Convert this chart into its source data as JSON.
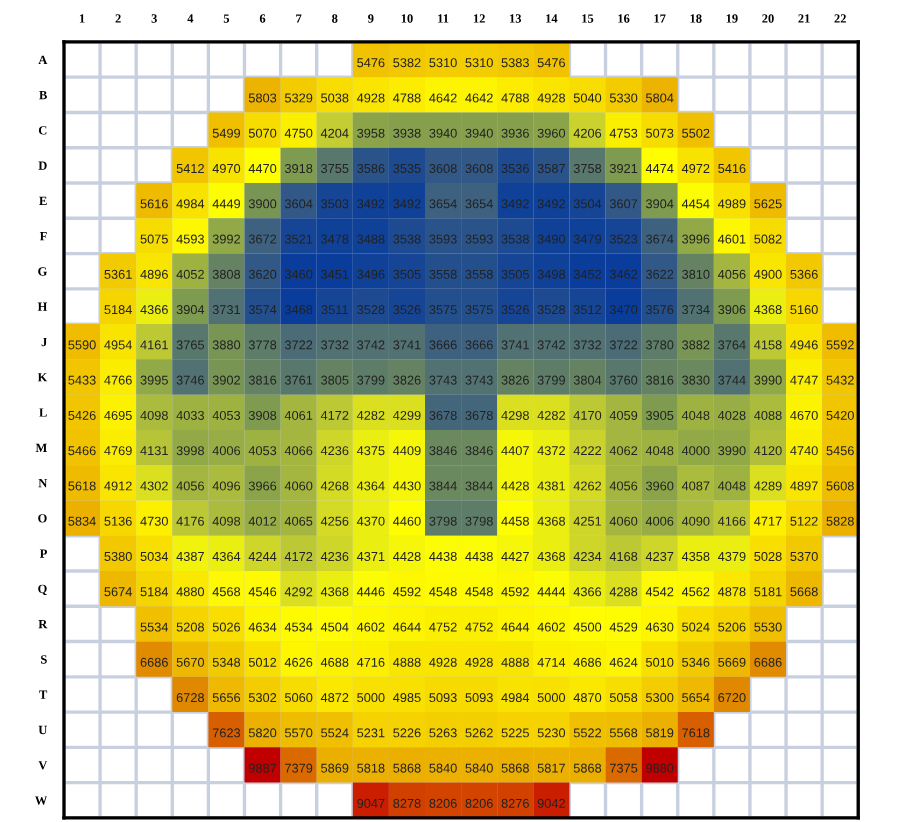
{
  "chart_data": {
    "type": "heatmap",
    "data_labels": true,
    "grid": true,
    "categories": [
      "1",
      "2",
      "3",
      "4",
      "5",
      "6",
      "7",
      "8",
      "9",
      "10",
      "11",
      "12",
      "13",
      "14",
      "15",
      "16",
      "17",
      "18",
      "19",
      "20",
      "21",
      "22"
    ],
    "y_categories": [
      "A",
      "B",
      "C",
      "D",
      "E",
      "F",
      "G",
      "H",
      "J",
      "K",
      "L",
      "M",
      "N",
      "O",
      "P",
      "Q",
      "R",
      "S",
      "T",
      "U",
      "V",
      "W"
    ],
    "cells": [
      [
        null,
        null,
        null,
        null,
        null,
        null,
        null,
        null,
        5476,
        5382,
        5310,
        5310,
        5383,
        5476,
        null,
        null,
        null,
        null,
        null,
        null,
        null,
        null
      ],
      [
        null,
        null,
        null,
        null,
        null,
        5803,
        5329,
        5038,
        4928,
        4788,
        4642,
        4642,
        4788,
        4928,
        5040,
        5330,
        5804,
        null,
        null,
        null,
        null,
        null
      ],
      [
        null,
        null,
        null,
        null,
        5499,
        5070,
        4750,
        4204,
        3958,
        3938,
        3940,
        3940,
        3936,
        3960,
        4206,
        4753,
        5073,
        5502,
        null,
        null,
        null,
        null
      ],
      [
        null,
        null,
        null,
        5412,
        4970,
        4470,
        3918,
        3755,
        3586,
        3535,
        3608,
        3608,
        3536,
        3587,
        3758,
        3921,
        4474,
        4972,
        5416,
        null,
        null,
        null
      ],
      [
        null,
        null,
        5616,
        4984,
        4449,
        3900,
        3604,
        3503,
        3492,
        3492,
        3654,
        3654,
        3492,
        3492,
        3504,
        3607,
        3904,
        4454,
        4989,
        5625,
        null,
        null
      ],
      [
        null,
        null,
        5075,
        4593,
        3992,
        3672,
        3521,
        3478,
        3488,
        3538,
        3593,
        3593,
        3538,
        3490,
        3479,
        3523,
        3674,
        3996,
        4601,
        5082,
        null,
        null
      ],
      [
        null,
        5361,
        4896,
        4052,
        3808,
        3620,
        3460,
        3451,
        3496,
        3505,
        3558,
        3558,
        3505,
        3498,
        3452,
        3462,
        3622,
        3810,
        4056,
        4900,
        5366,
        null
      ],
      [
        null,
        5184,
        4366,
        3904,
        3731,
        3574,
        3468,
        3511,
        3528,
        3526,
        3575,
        3575,
        3526,
        3528,
        3512,
        3470,
        3576,
        3734,
        3906,
        4368,
        5160,
        null
      ],
      [
        5590,
        4954,
        4161,
        3765,
        3880,
        3778,
        3722,
        3732,
        3742,
        3741,
        3666,
        3666,
        3741,
        3742,
        3732,
        3722,
        3780,
        3882,
        3764,
        4158,
        4946,
        5592
      ],
      [
        5433,
        4766,
        3995,
        3746,
        3902,
        3816,
        3761,
        3805,
        3799,
        3826,
        3743,
        3743,
        3826,
        3799,
        3804,
        3760,
        3816,
        3830,
        3744,
        3990,
        4747,
        5432
      ],
      [
        5426,
        4695,
        4098,
        4033,
        4053,
        3908,
        4061,
        4172,
        4282,
        4299,
        3678,
        3678,
        4298,
        4282,
        4170,
        4059,
        3905,
        4048,
        4028,
        4088,
        4670,
        5420
      ],
      [
        5466,
        4769,
        4131,
        3998,
        4006,
        4053,
        4066,
        4236,
        4375,
        4409,
        3846,
        3846,
        4407,
        4372,
        4222,
        4062,
        4048,
        4000,
        3990,
        4120,
        4740,
        5456
      ],
      [
        5618,
        4912,
        4302,
        4056,
        4096,
        3966,
        4060,
        4268,
        4364,
        4430,
        3844,
        3844,
        4428,
        4381,
        4262,
        4056,
        3960,
        4087,
        4048,
        4289,
        4897,
        5608
      ],
      [
        5834,
        5136,
        4730,
        4176,
        4098,
        4012,
        4065,
        4256,
        4370,
        4460,
        3798,
        3798,
        4458,
        4368,
        4251,
        4060,
        4006,
        4090,
        4166,
        4717,
        5122,
        5828
      ],
      [
        null,
        5380,
        5034,
        4387,
        4364,
        4244,
        4172,
        4236,
        4371,
        4428,
        4438,
        4438,
        4427,
        4368,
        4234,
        4168,
        4237,
        4358,
        4379,
        5028,
        5370,
        null
      ],
      [
        null,
        5674,
        5184,
        4880,
        4568,
        4546,
        4292,
        4368,
        4446,
        4592,
        4548,
        4548,
        4592,
        4444,
        4366,
        4288,
        4542,
        4562,
        4878,
        5181,
        5668,
        null
      ],
      [
        null,
        null,
        5534,
        5208,
        5026,
        4634,
        4534,
        4504,
        4602,
        4644,
        4752,
        4752,
        4644,
        4602,
        4500,
        4529,
        4630,
        5024,
        5206,
        5530,
        null,
        null
      ],
      [
        null,
        null,
        6686,
        5670,
        5348,
        5012,
        4626,
        4688,
        4716,
        4888,
        4928,
        4928,
        4888,
        4714,
        4686,
        4624,
        5010,
        5346,
        5669,
        6686,
        null,
        null
      ],
      [
        null,
        null,
        null,
        6728,
        5656,
        5302,
        5060,
        4872,
        5000,
        4985,
        5093,
        5093,
        4984,
        5000,
        4870,
        5058,
        5300,
        5654,
        6720,
        null,
        null,
        null
      ],
      [
        null,
        null,
        null,
        null,
        7623,
        5820,
        5570,
        5524,
        5231,
        5226,
        5263,
        5262,
        5225,
        5230,
        5522,
        5568,
        5819,
        7618,
        null,
        null,
        null,
        null
      ],
      [
        null,
        null,
        null,
        null,
        null,
        9887,
        7379,
        5869,
        5818,
        5868,
        5840,
        5840,
        5868,
        5817,
        5868,
        7375,
        9880,
        null,
        null,
        null,
        null,
        null
      ],
      [
        null,
        null,
        null,
        null,
        null,
        null,
        null,
        null,
        9047,
        8278,
        8206,
        8206,
        8276,
        9042,
        null,
        null,
        null,
        null,
        null,
        null,
        null,
        null
      ]
    ]
  }
}
